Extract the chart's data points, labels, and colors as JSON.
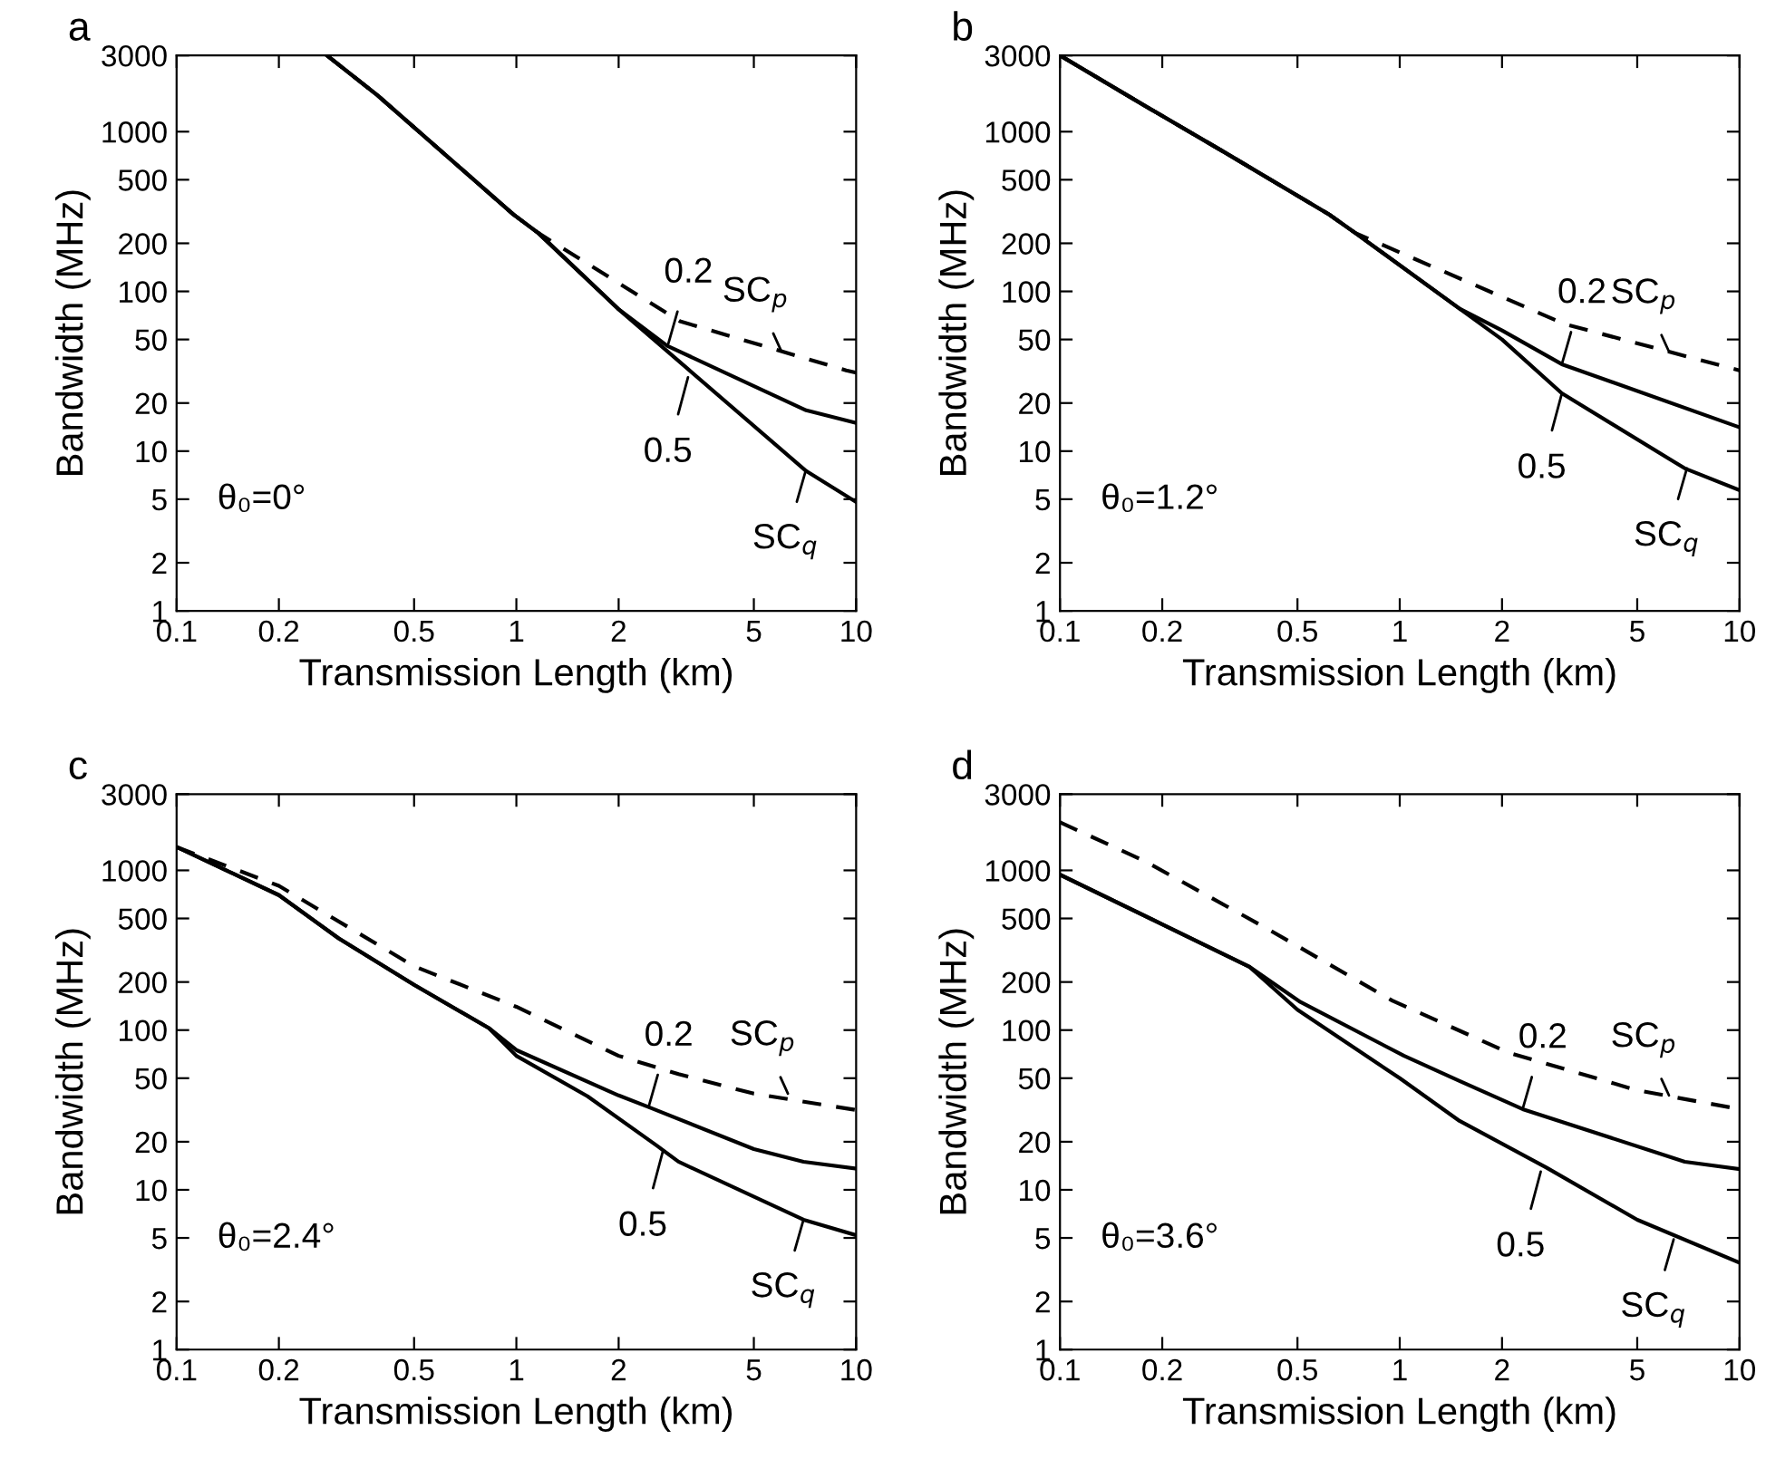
{
  "chart_data": [
    {
      "type": "line",
      "title": "a",
      "xlabel": "Transmission Length (km)",
      "ylabel": "Bandwidth (MHz)",
      "log": "xy",
      "xlim": [
        0.1,
        10
      ],
      "ylim": [
        1,
        3000
      ],
      "xticks": [
        0.1,
        0.2,
        0.5,
        1,
        2,
        5,
        10
      ],
      "yticks": [
        1,
        2,
        5,
        10,
        20,
        50,
        100,
        200,
        500,
        1000,
        3000
      ],
      "grid": false,
      "series": [
        {
          "color": "#000000",
          "line_style": "dashed",
          "x": [
            0.277,
            0.39,
            0.98,
            1.16,
            3.03,
            9.35,
            10
          ],
          "values": [
            3000,
            1690,
            303,
            232,
            65,
            32,
            31
          ]
        },
        {
          "color": "#000000",
          "line_style": "solid",
          "x": [
            0.277,
            0.39,
            0.98,
            1.16,
            1.99,
            2.78,
            7.13,
            10
          ],
          "values": [
            3000,
            1690,
            303,
            232,
            78,
            45.6,
            18,
            15
          ]
        },
        {
          "color": "#000000",
          "line_style": "solid",
          "x": [
            0.277,
            0.39,
            0.98,
            1.16,
            1.99,
            3.18,
            7.13,
            10
          ],
          "values": [
            3000,
            1690,
            303,
            232,
            78,
            33,
            7.5,
            4.8
          ]
        }
      ],
      "annotations": [
        {
          "text": "0.2",
          "x": 2.8,
          "y": 47
        },
        {
          "text": "SC$_{p}$",
          "x": 6.0,
          "y": 43
        },
        {
          "text": "0.5",
          "x": 3.2,
          "y": 29
        },
        {
          "text": "SC$_{q}$",
          "x": 7.1,
          "y": 7.5
        },
        "θ₀=0°"
      ]
    },
    {
      "type": "line",
      "title": "b",
      "xlabel": "Transmission Length (km)",
      "ylabel": "Bandwidth (MHz)",
      "log": "xy",
      "xlim": [
        0.1,
        10
      ],
      "ylim": [
        1,
        3000
      ],
      "xticks": [
        0.1,
        0.2,
        0.5,
        1,
        2,
        5,
        10
      ],
      "yticks": [
        1,
        2,
        5,
        10,
        20,
        50,
        100,
        200,
        500,
        1000,
        3000
      ],
      "grid": false,
      "series": [
        {
          "color": "#000000",
          "line_style": "dashed",
          "x": [
            0.1,
            0.178,
            0.306,
            0.62,
            0.74,
            3.05,
            10
          ],
          "values": [
            3000,
            1450,
            740,
            303,
            232,
            62.5,
            32
          ]
        },
        {
          "color": "#000000",
          "line_style": "solid",
          "x": [
            0.1,
            0.178,
            0.306,
            0.62,
            0.74,
            1.5,
            2.0,
            3.0,
            10
          ],
          "values": [
            3000,
            1450,
            740,
            303,
            232,
            78,
            57,
            35,
            14.1
          ]
        },
        {
          "color": "#000000",
          "line_style": "solid",
          "x": [
            0.1,
            0.178,
            0.306,
            0.62,
            0.74,
            1.5,
            2.0,
            3.0,
            6.9,
            10
          ],
          "values": [
            3000,
            1450,
            740,
            303,
            232,
            78,
            50,
            23,
            7.8,
            5.7
          ]
        }
      ],
      "annotations": [
        {
          "text": "0.2",
          "x": 3.0,
          "y": 35
        },
        {
          "text": "SC$_{p}$",
          "x": 6.2,
          "y": 42
        },
        {
          "text": "0.5",
          "x": 3.0,
          "y": 23
        },
        {
          "text": "SC$_{q}$",
          "x": 7.0,
          "y": 7.8
        },
        "θ₀=1.2°"
      ]
    },
    {
      "type": "line",
      "title": "c",
      "xlabel": "Transmission Length (km)",
      "ylabel": "Bandwidth (MHz)",
      "log": "xy",
      "xlim": [
        0.1,
        10
      ],
      "ylim": [
        1,
        3000
      ],
      "xticks": [
        0.1,
        0.2,
        0.5,
        1,
        2,
        5,
        10
      ],
      "yticks": [
        1,
        2,
        5,
        10,
        20,
        50,
        100,
        200,
        500,
        1000,
        3000
      ],
      "grid": false,
      "series": [
        {
          "color": "#000000",
          "line_style": "dashed",
          "x": [
            0.1,
            0.2,
            0.5,
            1.0,
            2.0,
            3.0,
            5.0,
            10
          ],
          "values": [
            1400,
            800,
            251,
            140,
            69,
            53,
            40,
            31.6
          ]
        },
        {
          "color": "#000000",
          "line_style": "solid",
          "x": [
            0.1,
            0.2,
            0.3,
            0.5,
            0.83,
            1.0,
            2.0,
            2.45,
            5.0,
            7.0,
            10
          ],
          "values": [
            1400,
            700,
            375,
            192,
            103,
            75,
            39,
            33,
            18,
            15,
            13.6
          ]
        },
        {
          "color": "#000000",
          "line_style": "solid",
          "x": [
            0.1,
            0.2,
            0.3,
            0.5,
            0.83,
            1.0,
            1.62,
            2.6,
            3.0,
            7.0,
            10
          ],
          "values": [
            1400,
            700,
            375,
            192,
            103,
            69,
            38.5,
            18.8,
            15,
            6.5,
            5.2
          ]
        }
      ],
      "annotations": [
        {
          "text": "0.2",
          "x": 2.45,
          "y": 33
        },
        {
          "text": "SC$_{p}$",
          "x": 6.3,
          "y": 40
        },
        {
          "text": "0.5",
          "x": 2.7,
          "y": 17.5
        },
        {
          "text": "SC$_{q}$",
          "x": 7.0,
          "y": 6.5
        },
        "θ₀=2.4°"
      ]
    },
    {
      "type": "line",
      "title": "d",
      "xlabel": "Transmission Length (km)",
      "ylabel": "Bandwidth (MHz)",
      "log": "xy",
      "xlim": [
        0.1,
        10
      ],
      "ylim": [
        1,
        3000
      ],
      "xticks": [
        0.1,
        0.2,
        0.5,
        1,
        2,
        5,
        10
      ],
      "yticks": [
        1,
        2,
        5,
        10,
        20,
        50,
        100,
        200,
        500,
        1000,
        3000
      ],
      "grid": false,
      "series": [
        {
          "color": "#000000",
          "line_style": "dashed",
          "x": [
            0.1,
            0.178,
            0.41,
            0.95,
            2.1,
            5.0,
            10
          ],
          "values": [
            2000,
            1140,
            428,
            153,
            72,
            42,
            32
          ]
        },
        {
          "color": "#000000",
          "line_style": "solid",
          "x": [
            0.1,
            0.36,
            0.51,
            1.03,
            1.5,
            2.3,
            6.9,
            10
          ],
          "values": [
            940,
            250,
            150,
            69,
            48,
            32,
            15,
            13.5
          ]
        },
        {
          "color": "#000000",
          "line_style": "solid",
          "x": [
            0.1,
            0.36,
            0.5,
            1.0,
            1.5,
            2.7,
            5.0,
            10
          ],
          "values": [
            940,
            250,
            134,
            50,
            27,
            13.8,
            6.5,
            3.5
          ]
        }
      ],
      "annotations": [
        {
          "text": "0.2",
          "x": 2.3,
          "y": 32
        },
        {
          "text": "SC$_{p}$",
          "x": 6.2,
          "y": 39
        },
        {
          "text": "0.5",
          "x": 2.6,
          "y": 13
        },
        {
          "text": "SC$_{q}$",
          "x": 6.4,
          "y": 4.9
        },
        "θ₀=3.6°"
      ]
    }
  ]
}
